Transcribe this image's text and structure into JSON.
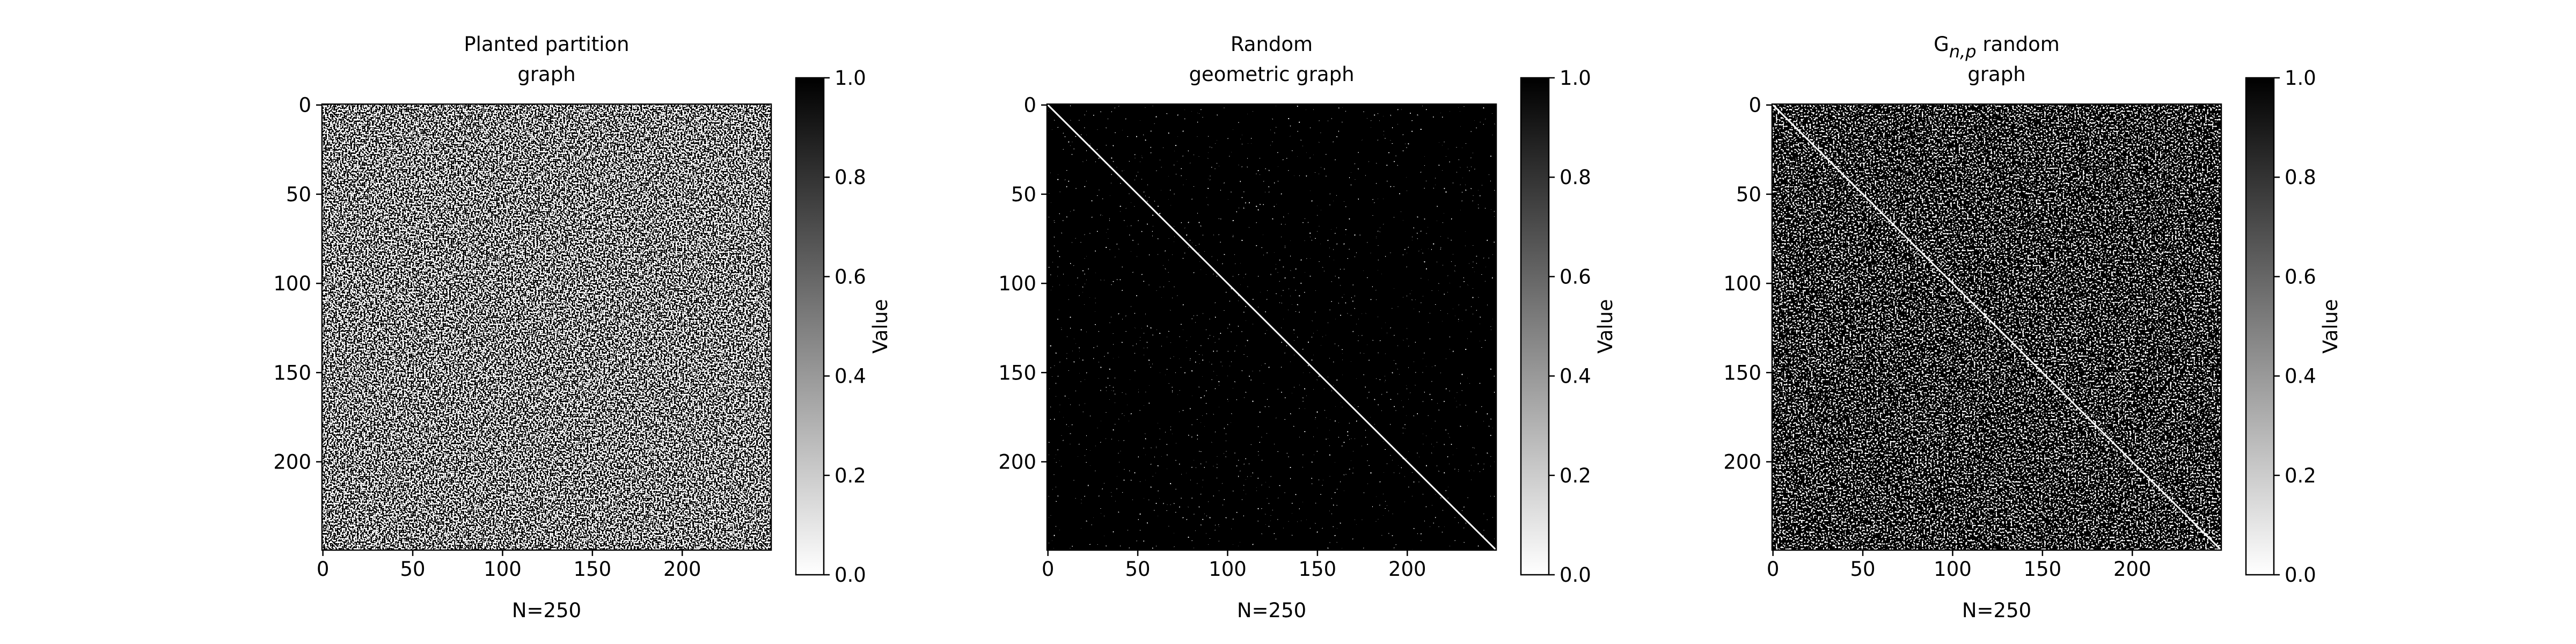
{
  "chart_data": [
    {
      "type": "heatmap",
      "title": [
        [
          "Planted partition"
        ],
        [
          "graph"
        ]
      ],
      "xlabel": "N=250",
      "xlim": [
        -0.5,
        249.5
      ],
      "ylim": [
        249.5,
        -0.5
      ],
      "xticks": [
        0,
        50,
        100,
        150,
        200
      ],
      "yticks": [
        0,
        50,
        100,
        150,
        200
      ],
      "cmap": "Greys",
      "diagonal": false,
      "colorbar": {
        "label": "Value",
        "lim": [
          0,
          1
        ],
        "ticks": [
          {
            "value": 0,
            "label": "0.0"
          },
          0.2,
          0.4,
          0.6,
          0.8,
          {
            "value": 1,
            "label": "1.0"
          }
        ]
      }
    },
    {
      "type": "heatmap",
      "title": [
        [
          "Random"
        ],
        [
          "geometric graph"
        ]
      ],
      "xlabel": "N=250",
      "xlim": [
        -0.5,
        249.5
      ],
      "ylim": [
        249.5,
        -0.5
      ],
      "xticks": [
        0,
        50,
        100,
        150,
        200
      ],
      "yticks": [
        0,
        50,
        100,
        150,
        200
      ],
      "cmap": "Greys",
      "diagonal": true,
      "colorbar": {
        "label": "Value",
        "lim": [
          0,
          1
        ],
        "ticks": [
          {
            "value": 0,
            "label": "0.0"
          },
          0.2,
          0.4,
          0.6,
          0.8,
          {
            "value": 1,
            "label": "1.0"
          }
        ]
      }
    },
    {
      "type": "heatmap",
      "title": [
        [
          "G",
          {
            "text": "n,p",
            "sub": true
          },
          " random"
        ],
        [
          "graph"
        ]
      ],
      "xlabel": "N=250",
      "xlim": [
        -0.5,
        249.5
      ],
      "ylim": [
        249.5,
        -0.5
      ],
      "xticks": [
        0,
        50,
        100,
        150,
        200
      ],
      "yticks": [
        0,
        50,
        100,
        150,
        200
      ],
      "cmap": "Greys",
      "diagonal": true,
      "colorbar": {
        "label": "Value",
        "lim": [
          0,
          1
        ],
        "ticks": [
          {
            "value": 0,
            "label": "0.0"
          },
          0.2,
          0.4,
          0.6,
          0.8,
          {
            "value": 1,
            "label": "1.0"
          }
        ]
      }
    }
  ]
}
